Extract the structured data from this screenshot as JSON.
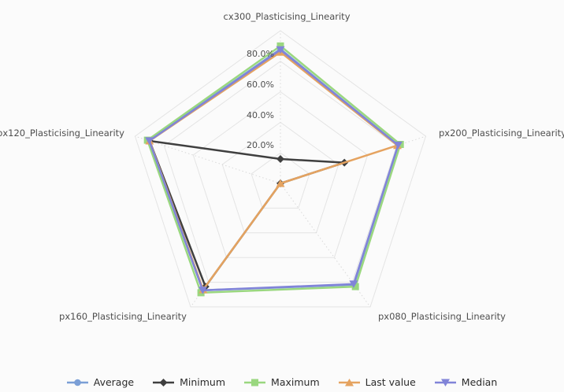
{
  "chart_data": {
    "type": "radar",
    "title": "",
    "categories": [
      "cx300_Plasticising_Linearity",
      "px200_Plasticising_Linearity",
      "px080_Plasticising_Linearity",
      "px160_Plasticising_Linearity",
      "px120_Plasticising_Linearity"
    ],
    "tick_labels": [
      "20.0%",
      "40.0%",
      "60.0%",
      "80.0%"
    ],
    "grid_levels": [
      20,
      40,
      60,
      80,
      100
    ],
    "radial_range": [
      0,
      100
    ],
    "unit": "%",
    "grid_on": true,
    "legend_position": "bottom",
    "series": [
      {
        "name": "Average",
        "color": "#7b9fd6",
        "marker": "circle",
        "values": [
          88,
          81,
          82,
          86.5,
          90.5
        ]
      },
      {
        "name": "Minimum",
        "color": "#3f3f3f",
        "marker": "diamond",
        "values": [
          16,
          44,
          0,
          83.5,
          90
        ]
      },
      {
        "name": "Maximum",
        "color": "#9ad77f",
        "marker": "square",
        "values": [
          90,
          82.5,
          83.5,
          88.5,
          91.5
        ]
      },
      {
        "name": "Last value",
        "color": "#e5a360",
        "marker": "triangle-up",
        "values": [
          86,
          80.5,
          0,
          86,
          90
        ]
      },
      {
        "name": "Median",
        "color": "#8184d8",
        "marker": "triangle-down",
        "values": [
          87.5,
          81,
          81.5,
          86.5,
          90.2
        ]
      }
    ],
    "grid_line_color": "#e4e4e4",
    "axis_line_color": "#d9d9d9",
    "label_color": "#4e4e4e",
    "background_color": "#fbfbfb"
  }
}
